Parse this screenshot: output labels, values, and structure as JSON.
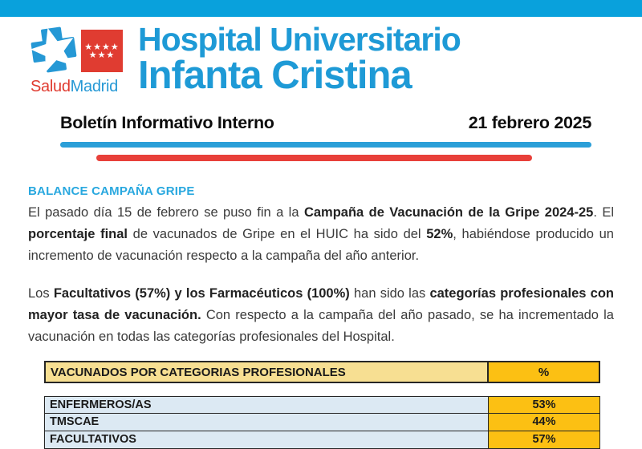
{
  "colors": {
    "top_bar": "#09A1DC",
    "title_blue": "#1E9AD6",
    "heading_blue": "#29A8DF",
    "line_blue": "#2B9FD8",
    "line_red": "#E8403A",
    "logo_red": "#E03C31",
    "logo_blue": "#2598D5",
    "table_header_bg": "#F7DF92",
    "table_accent_bg": "#FCC013",
    "table_row_bg": "#DCE9F3",
    "body_text": "#3A3A3A"
  },
  "logo": {
    "salud": "Salud",
    "madrid": "Madrid",
    "flag_stars_top": "★★★★",
    "flag_stars_bottom": "★★★"
  },
  "header": {
    "title_line1": "Hospital Universitario",
    "title_line2": "Infanta Cristina"
  },
  "bulletin": {
    "name": "Boletín Informativo Interno",
    "date": "21 febrero 2025"
  },
  "section": {
    "heading": "BALANCE CAMPAÑA GRIPE"
  },
  "paragraphs": [
    [
      {
        "text": "El pasado día 15 de febrero se puso fin a la ",
        "bold": false
      },
      {
        "text": "Campaña de Vacunación de la Gripe 2024-25",
        "bold": true
      },
      {
        "text": ". El ",
        "bold": false
      },
      {
        "text": "porcentaje final",
        "bold": true
      },
      {
        "text": " de vacunados de Gripe en el HUIC ha sido del ",
        "bold": false
      },
      {
        "text": "52%",
        "bold": true
      },
      {
        "text": ", habiéndose producido un incremento de vacunación respecto a la campaña del año anterior.",
        "bold": false
      }
    ],
    [
      {
        "text": "Los ",
        "bold": false
      },
      {
        "text": "Facultativos (57%) y los Farmacéuticos (100%)",
        "bold": true
      },
      {
        "text": " han sido las ",
        "bold": false
      },
      {
        "text": "categorías profesionales con mayor tasa de vacunación.",
        "bold": true
      },
      {
        "text": " Con respecto a la campaña del año pasado, se ha incrementado la vacunación en todas las categorías profesionales del Hospital.",
        "bold": false
      }
    ]
  ],
  "table": {
    "header": {
      "category": "VACUNADOS POR CATEGORIAS PROFESIONALES",
      "percent": "%"
    },
    "rows": [
      {
        "label": "ENFERMEROS/AS",
        "value": "53%"
      },
      {
        "label": "TMSCAE",
        "value": "44%"
      },
      {
        "label": "FACULTATIVOS",
        "value": "57%"
      }
    ]
  }
}
